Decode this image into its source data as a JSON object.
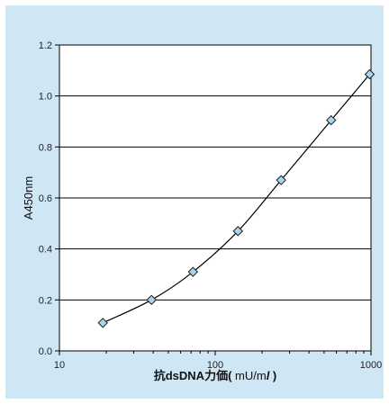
{
  "chart_data": {
    "type": "line",
    "x_scale": "log",
    "ylabel": "A450nm",
    "xlabel": {
      "prefix": "抗dsDNA力価(",
      "unit_mid": " mU/m",
      "unit_l": "l",
      "suffix": " )"
    },
    "xlim": [
      10,
      1000
    ],
    "ylim": [
      0.0,
      1.2
    ],
    "x_ticks": [
      10,
      100,
      1000
    ],
    "x_tick_labels": [
      "10",
      "100",
      "1000"
    ],
    "y_ticks": [
      0.0,
      0.2,
      0.4,
      0.6,
      0.8,
      1.0,
      1.2
    ],
    "y_tick_labels": [
      "0.0",
      "0.2",
      "0.4",
      "0.6",
      "0.8",
      "1.0",
      "1.2"
    ],
    "grid": {
      "horizontal": true,
      "vertical": false
    },
    "series": [
      {
        "marker": "diamond",
        "x": [
          19,
          39,
          72,
          140,
          265,
          555,
          980
        ],
        "y": [
          0.11,
          0.2,
          0.31,
          0.47,
          0.67,
          0.905,
          1.085
        ]
      }
    ],
    "colors": {
      "background": "#cfe6f4",
      "plot_area": "#ffffff",
      "line": "#000000",
      "marker_fill": "#a9d3ee",
      "marker_stroke": "#1a1a1a"
    }
  }
}
